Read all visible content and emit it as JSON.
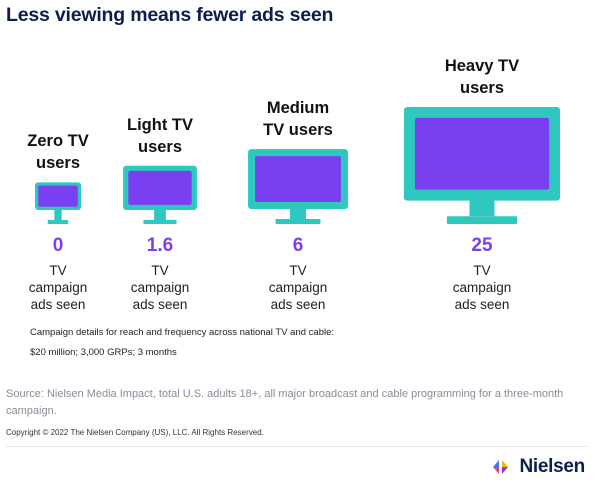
{
  "title": "Less viewing means fewer ads seen",
  "colors": {
    "tv_body": "#2ec8c0",
    "tv_screen": "#7b3ff2",
    "value_text": "#7b3ff2",
    "title_text": "#0b1f4d"
  },
  "chart_data": {
    "type": "bar",
    "title": "Less viewing means fewer ads seen",
    "categories": [
      [
        "Zero TV",
        "users"
      ],
      [
        "Light TV",
        "users"
      ],
      [
        "Medium",
        "TV users"
      ],
      [
        "Heavy TV",
        "users"
      ]
    ],
    "values": [
      0,
      1.6,
      6,
      25
    ],
    "value_labels": [
      "0",
      "1.6",
      "6",
      "25"
    ],
    "unit_label": [
      "TV",
      "campaign",
      "ads seen"
    ]
  },
  "details": {
    "line1": "Campaign details for reach and frequency across national TV and cable:",
    "line2": "$20 million; 3,000 GRPs; 3 months"
  },
  "source": "Source: Nielsen Media Impact, total U.S. adults 18+, all major broadcast and cable programming for a three-month campaign.",
  "copyright": "Copyright © 2022 The Nielsen Company (US), LLC. All Rights Reserved.",
  "logo": {
    "text": "Nielsen",
    "icon": "nielsen-logo-icon"
  }
}
